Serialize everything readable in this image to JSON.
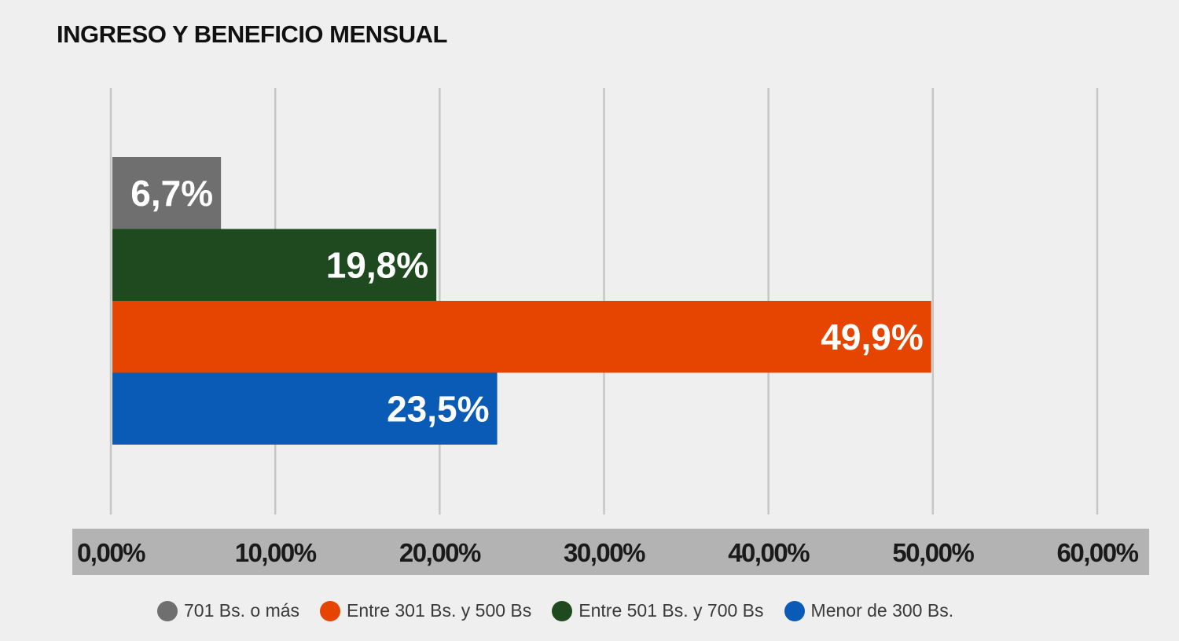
{
  "chart_data": {
    "type": "bar",
    "orientation": "horizontal",
    "title": "INGRESO Y BENEFICIO MENSUAL",
    "xlim": [
      0,
      60
    ],
    "grid": true,
    "legend_position": "bottom",
    "x_ticks": [
      "0,00%",
      "10,00%",
      "20,00%",
      "30,00%",
      "40,00%",
      "50,00%",
      "60,00%"
    ],
    "series": [
      {
        "name": "701 Bs. o más",
        "value": 6.7,
        "label": "6,7%",
        "color": "#6f6f6f"
      },
      {
        "name": "Entre 501 Bs. y 700 Bs",
        "value": 19.8,
        "label": "19,8%",
        "color": "#1f4a1f"
      },
      {
        "name": "Entre 301 Bs. y 500 Bs",
        "value": 49.9,
        "label": "49,9%",
        "color": "#e54500"
      },
      {
        "name": "Menor de 300 Bs.",
        "value": 23.5,
        "label": "23,5%",
        "color": "#0a5bb5"
      }
    ],
    "legend_order": [
      "701 Bs. o más",
      "Entre 301 Bs. y 500 Bs",
      "Entre 501 Bs. y 700 Bs",
      "Menor de 300 Bs."
    ]
  }
}
